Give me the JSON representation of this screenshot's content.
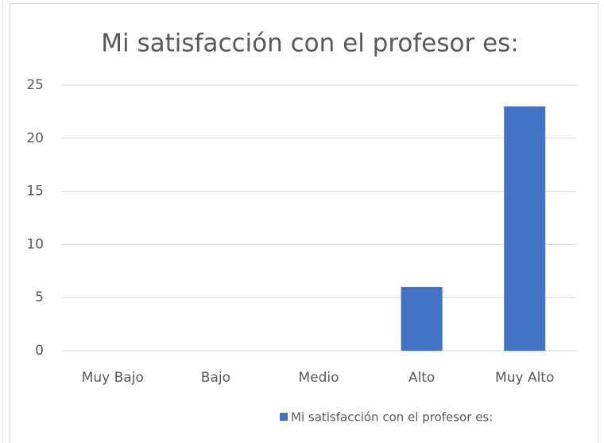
{
  "chart_data": {
    "type": "bar",
    "title": "Mi satisfacción con el profesor es:",
    "categories": [
      "Muy Bajo",
      "Bajo",
      "Medio",
      "Alto",
      "Muy Alto"
    ],
    "series": [
      {
        "name": "Mi satisfacción con el profesor es:",
        "color": "#4472c4",
        "values": [
          0,
          0,
          0,
          6,
          23
        ]
      }
    ],
    "ylim": [
      0,
      25
    ],
    "yticks": [
      0,
      5,
      10,
      15,
      20,
      25
    ],
    "grid": true,
    "legend": "bottom"
  }
}
